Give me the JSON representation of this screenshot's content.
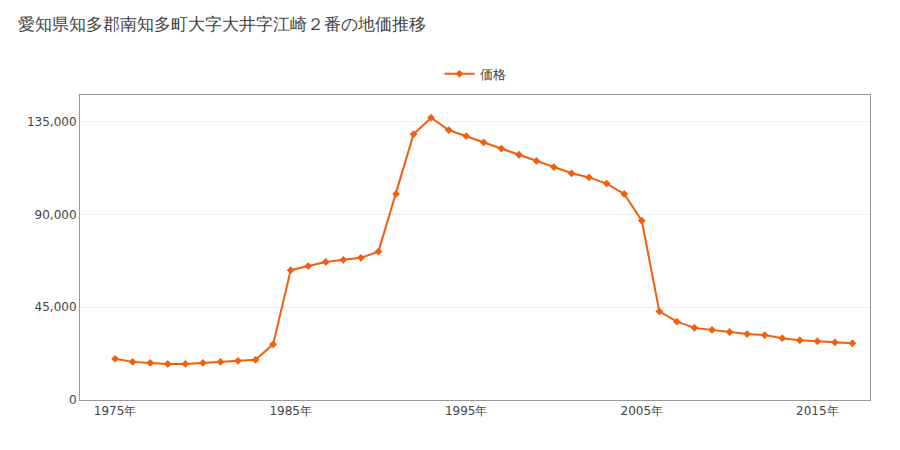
{
  "chart_data": {
    "type": "line",
    "title": "愛知県知多郡南知多町大字大井字江崎２番の地価推移",
    "x": [
      1975,
      1976,
      1977,
      1978,
      1979,
      1980,
      1981,
      1982,
      1983,
      1984,
      1985,
      1986,
      1987,
      1988,
      1989,
      1990,
      1991,
      1992,
      1993,
      1994,
      1995,
      1996,
      1997,
      1998,
      1999,
      2000,
      2001,
      2002,
      2003,
      2004,
      2005,
      2006,
      2007,
      2008,
      2009,
      2010,
      2011,
      2012,
      2013,
      2014,
      2015,
      2016,
      2017
    ],
    "series": [
      {
        "name": "価格",
        "color": "#f06010",
        "marker": "diamond",
        "line_style": "solid",
        "values": [
          20000,
          18500,
          18000,
          17500,
          17500,
          18000,
          18500,
          19000,
          19500,
          27000,
          63000,
          65000,
          67000,
          68000,
          69000,
          72000,
          100000,
          129000,
          137000,
          131000,
          128000,
          125000,
          122000,
          119000,
          116000,
          113000,
          110000,
          108000,
          105000,
          100000,
          87000,
          43000,
          38000,
          35000,
          34000,
          33000,
          32000,
          31500,
          30000,
          29000,
          28500,
          28000,
          27500
        ]
      }
    ],
    "xlim": [
      1973,
      2018
    ],
    "xticks": [
      {
        "value": 1975,
        "label": "1975年"
      },
      {
        "value": 1985,
        "label": "1985年"
      },
      {
        "value": 1995,
        "label": "1995年"
      },
      {
        "value": 2005,
        "label": "2005年"
      },
      {
        "value": 2015,
        "label": "2015年"
      }
    ],
    "ylim": [
      0,
      148000
    ],
    "yticks": [
      0,
      {
        "value": 45000,
        "label": "45,000"
      },
      {
        "value": 90000,
        "label": "90,000"
      },
      {
        "value": 135000,
        "label": "135,000"
      }
    ],
    "grid": "y",
    "legend": "top"
  }
}
